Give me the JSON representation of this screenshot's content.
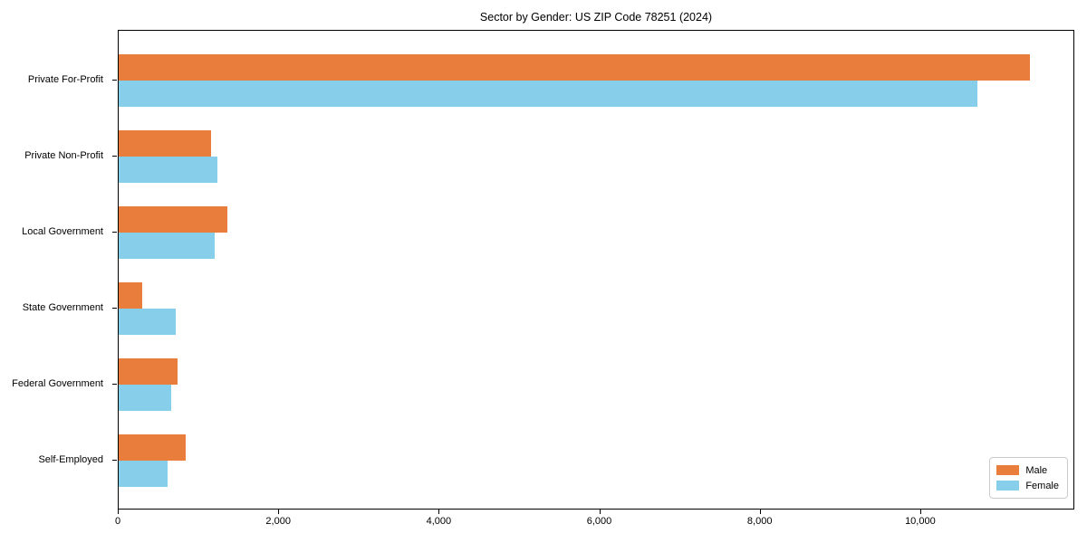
{
  "chart_data": {
    "type": "bar",
    "orientation": "horizontal",
    "title": "Sector by Gender: US ZIP Code 78251 (2024)",
    "categories": [
      "Private For-Profit",
      "Private Non-Profit",
      "Local Government",
      "State Government",
      "Federal Government",
      "Self-Employed"
    ],
    "series": [
      {
        "name": "Male",
        "color": "#E87D3C",
        "values": [
          11350,
          1150,
          1350,
          290,
          730,
          840
        ]
      },
      {
        "name": "Female",
        "color": "#87CEEB",
        "values": [
          10700,
          1230,
          1200,
          710,
          650,
          610
        ]
      }
    ],
    "xlabel": "",
    "ylabel": "",
    "xlim": [
      0,
      11920
    ],
    "x_ticks": [
      0,
      2000,
      4000,
      6000,
      8000,
      10000
    ],
    "x_tick_labels": [
      "0",
      "2,000",
      "4,000",
      "6,000",
      "8,000",
      "10,000"
    ],
    "legend_position": "lower right",
    "grid": false,
    "axis_color": "#000000"
  }
}
